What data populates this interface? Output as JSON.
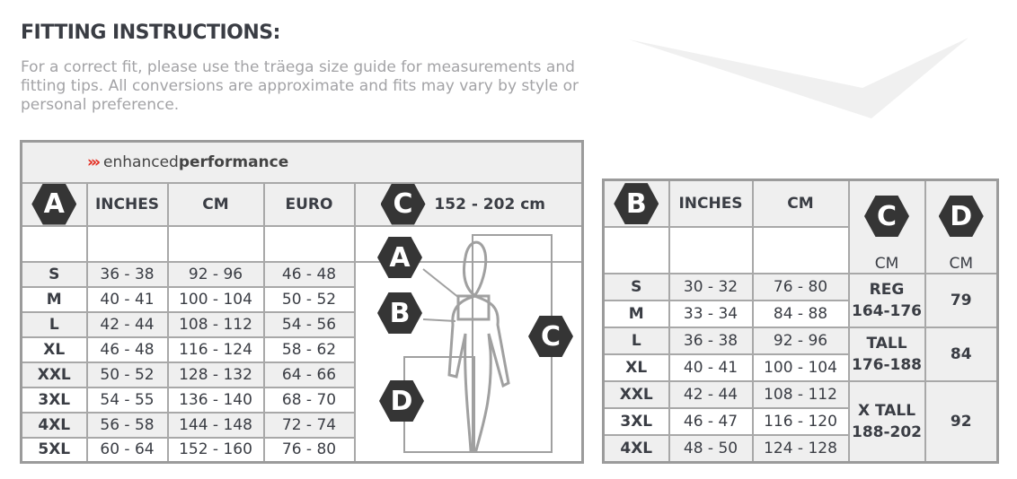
{
  "title": "FITTING INSTRUCTIONS:",
  "intro": "For a correct fit, please use the träega size guide for measurements and fitting tips. All conversions are approximate and fits may vary by style or personal preference.",
  "brand": {
    "arrows": "›››",
    "light": "enhanced",
    "bold": "performance",
    "arrow_color": "#e42a1d"
  },
  "top_table": {
    "label": "A",
    "headers": [
      "INCHES",
      "CM",
      "EURO"
    ],
    "height_label": "C",
    "height_range": "152 - 202 cm",
    "rows": [
      {
        "size": "S",
        "inches": "36 - 38",
        "cm": "92 - 96",
        "euro": "46 - 48"
      },
      {
        "size": "M",
        "inches": "40 - 41",
        "cm": "100 - 104",
        "euro": "50 - 52"
      },
      {
        "size": "L",
        "inches": "42 - 44",
        "cm": "108 - 112",
        "euro": "54 - 56"
      },
      {
        "size": "XL",
        "inches": "46 - 48",
        "cm": "116 - 124",
        "euro": "58 - 62"
      },
      {
        "size": "XXL",
        "inches": "50 - 52",
        "cm": "128 - 132",
        "euro": "64 - 66"
      },
      {
        "size": "3XL",
        "inches": "54 - 55",
        "cm": "136 - 140",
        "euro": "68 - 70"
      },
      {
        "size": "4XL",
        "inches": "56 - 58",
        "cm": "144 - 148",
        "euro": "72 - 74"
      },
      {
        "size": "5XL",
        "inches": "60 - 64",
        "cm": "152 - 160",
        "euro": "76 - 80"
      }
    ],
    "figure_labels": [
      "A",
      "B",
      "C",
      "D"
    ]
  },
  "bottom_table": {
    "label": "B",
    "headers": [
      "INCHES",
      "CM"
    ],
    "rows": [
      {
        "size": "S",
        "inches": "30 - 32",
        "cm": "76 - 80"
      },
      {
        "size": "M",
        "inches": "33 - 34",
        "cm": "84 - 88"
      },
      {
        "size": "L",
        "inches": "36 - 38",
        "cm": "92 - 96"
      },
      {
        "size": "XL",
        "inches": "40 - 41",
        "cm": "100 - 104"
      },
      {
        "size": "XXL",
        "inches": "42 - 44",
        "cm": "108 - 112"
      },
      {
        "size": "3XL",
        "inches": "46 - 47",
        "cm": "116 - 120"
      },
      {
        "size": "4XL",
        "inches": "48 - 50",
        "cm": "124 - 128"
      }
    ],
    "c_label": "C",
    "d_label": "D",
    "c_unit": "CM",
    "d_unit": "CM",
    "lengths": [
      {
        "fit": "REG",
        "range": "164-176",
        "d": "79"
      },
      {
        "fit": "TALL",
        "range": "176-188",
        "d": "84"
      },
      {
        "fit": "X TALL",
        "range": "188-202",
        "d": "92"
      }
    ]
  }
}
